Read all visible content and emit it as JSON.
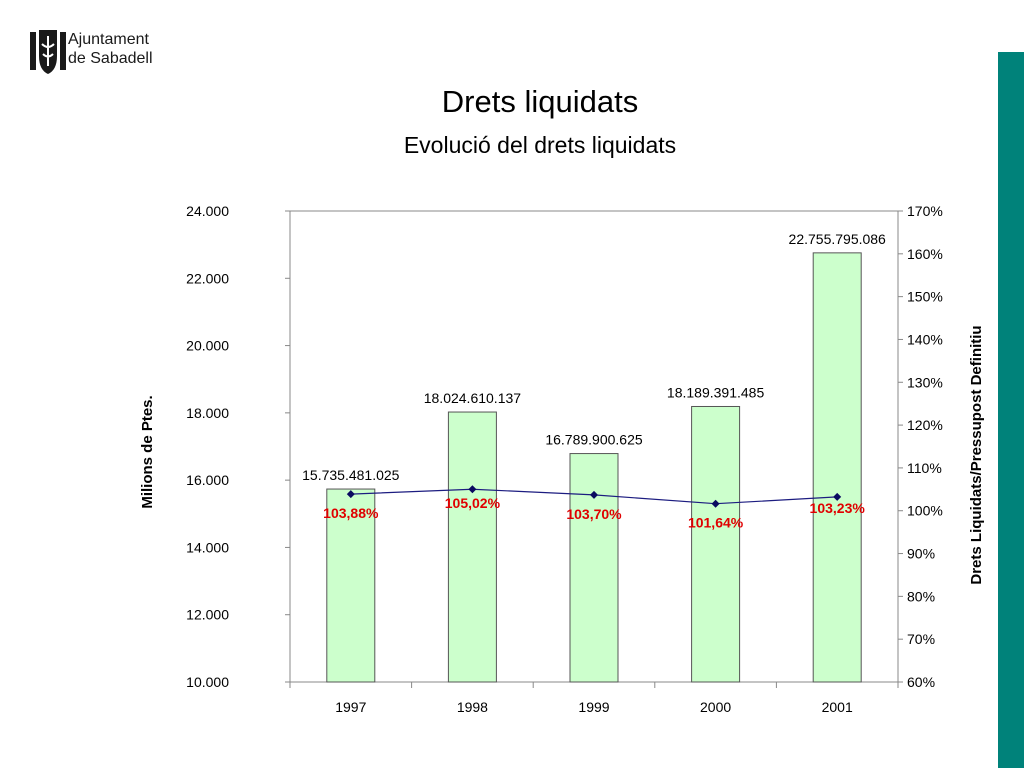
{
  "header": {
    "logo_icon": "sabadell-coat-of-arms-icon",
    "logo_line1": "Ajuntament",
    "logo_line2": "de Sabadell"
  },
  "colors": {
    "accent_bar": "#00827a",
    "bar_fill": "#ccffcc",
    "bar_stroke": "#555555",
    "line": "#1c1c80",
    "marker": "#0a0a60",
    "pct_label": "#e00000"
  },
  "chart_data": {
    "type": "bar",
    "title": "Drets liquidats",
    "subtitle": "Evolució del drets liquidats",
    "categories": [
      "1997",
      "1998",
      "1999",
      "2000",
      "2001"
    ],
    "ylabel": "Milions de Ptes.",
    "y2label": "Drets Liquidats/Pressupost Definitiu",
    "ylim": [
      10000,
      24000
    ],
    "y2lim": [
      60,
      170
    ],
    "yticks": [
      "10.000",
      "12.000",
      "14.000",
      "16.000",
      "18.000",
      "20.000",
      "22.000",
      "24.000"
    ],
    "y2ticks": [
      "60%",
      "70%",
      "80%",
      "90%",
      "100%",
      "110%",
      "120%",
      "130%",
      "140%",
      "150%",
      "160%",
      "170%"
    ],
    "series": [
      {
        "type": "bar",
        "axis": "left",
        "values": [
          15735.481025,
          18024.610137,
          16789.900625,
          18189.391485,
          22755.795086
        ],
        "labels": [
          "15.735.481.025",
          "18.024.610.137",
          "16.789.900.625",
          "18.189.391.485",
          "22.755.795.086"
        ]
      },
      {
        "type": "line",
        "axis": "right",
        "values": [
          103.88,
          105.02,
          103.7,
          101.64,
          103.23
        ],
        "labels": [
          "103,88%",
          "105,02%",
          "103,70%",
          "101,64%",
          "103,23%"
        ]
      }
    ],
    "grid": false,
    "legend": "none"
  }
}
